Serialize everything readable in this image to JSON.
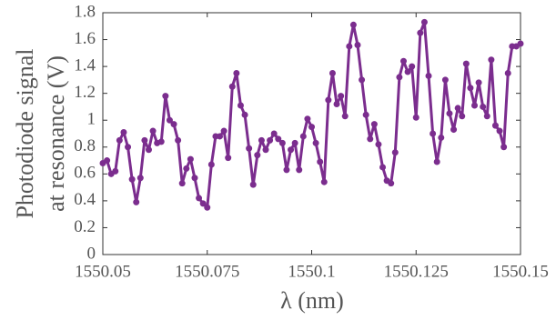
{
  "chart_data": {
    "type": "line",
    "xlabel": "λ (nm)",
    "ylabel": [
      "Photodiode signal",
      "at resonance (V)"
    ],
    "x": [
      1550.05,
      1550.051,
      1550.052,
      1550.053,
      1550.054,
      1550.055,
      1550.056,
      1550.057,
      1550.058,
      1550.059,
      1550.06,
      1550.061,
      1550.062,
      1550.063,
      1550.064,
      1550.065,
      1550.066,
      1550.067,
      1550.068,
      1550.069,
      1550.07,
      1550.071,
      1550.072,
      1550.073,
      1550.074,
      1550.075,
      1550.076,
      1550.077,
      1550.078,
      1550.079,
      1550.08,
      1550.081,
      1550.082,
      1550.083,
      1550.084,
      1550.085,
      1550.086,
      1550.087,
      1550.088,
      1550.089,
      1550.09,
      1550.091,
      1550.092,
      1550.093,
      1550.094,
      1550.095,
      1550.096,
      1550.097,
      1550.098,
      1550.099,
      1550.1,
      1550.101,
      1550.102,
      1550.103,
      1550.104,
      1550.105,
      1550.106,
      1550.107,
      1550.108,
      1550.109,
      1550.11,
      1550.111,
      1550.112,
      1550.113,
      1550.114,
      1550.115,
      1550.116,
      1550.117,
      1550.118,
      1550.119,
      1550.12,
      1550.121,
      1550.122,
      1550.123,
      1550.124,
      1550.125,
      1550.126,
      1550.127,
      1550.128,
      1550.129,
      1550.13,
      1550.131,
      1550.132,
      1550.133,
      1550.134,
      1550.135,
      1550.136,
      1550.137,
      1550.138,
      1550.139,
      1550.14,
      1550.141,
      1550.142,
      1550.143,
      1550.144,
      1550.145,
      1550.146,
      1550.147,
      1550.148,
      1550.149,
      1550.15
    ],
    "series": [
      {
        "color": "#7b2d8e",
        "values": [
          0.68,
          0.7,
          0.6,
          0.62,
          0.85,
          0.91,
          0.8,
          0.56,
          0.39,
          0.57,
          0.85,
          0.78,
          0.92,
          0.83,
          0.84,
          1.18,
          1.0,
          0.97,
          0.85,
          0.53,
          0.64,
          0.71,
          0.57,
          0.42,
          0.38,
          0.35,
          0.67,
          0.88,
          0.88,
          0.92,
          0.72,
          1.25,
          1.35,
          1.11,
          1.04,
          0.79,
          0.52,
          0.74,
          0.85,
          0.78,
          0.85,
          0.9,
          0.86,
          0.83,
          0.63,
          0.78,
          0.83,
          0.63,
          0.88,
          1.01,
          0.95,
          0.83,
          0.69,
          0.54,
          1.15,
          1.35,
          1.12,
          1.18,
          1.03,
          1.55,
          1.71,
          1.56,
          1.3,
          1.04,
          0.86,
          0.97,
          0.82,
          0.65,
          0.55,
          0.53,
          0.76,
          1.32,
          1.44,
          1.36,
          1.4,
          1.02,
          1.65,
          1.73,
          1.33,
          0.9,
          0.69,
          0.87,
          1.3,
          1.05,
          0.93,
          1.09,
          1.03,
          1.42,
          1.24,
          1.11,
          1.28,
          1.1,
          1.03,
          1.45,
          0.96,
          0.92,
          0.8,
          1.35,
          1.55,
          1.55,
          1.57
        ]
      }
    ],
    "xlim": [
      1550.05,
      1550.15
    ],
    "xticks": [
      1550.05,
      1550.075,
      1550.1,
      1550.125,
      1550.15
    ],
    "ylim": [
      0,
      1.8
    ],
    "yticks": [
      0,
      0.2,
      0.4,
      0.6,
      0.8,
      1,
      1.2,
      1.4,
      1.6,
      1.8
    ],
    "grid": false
  }
}
